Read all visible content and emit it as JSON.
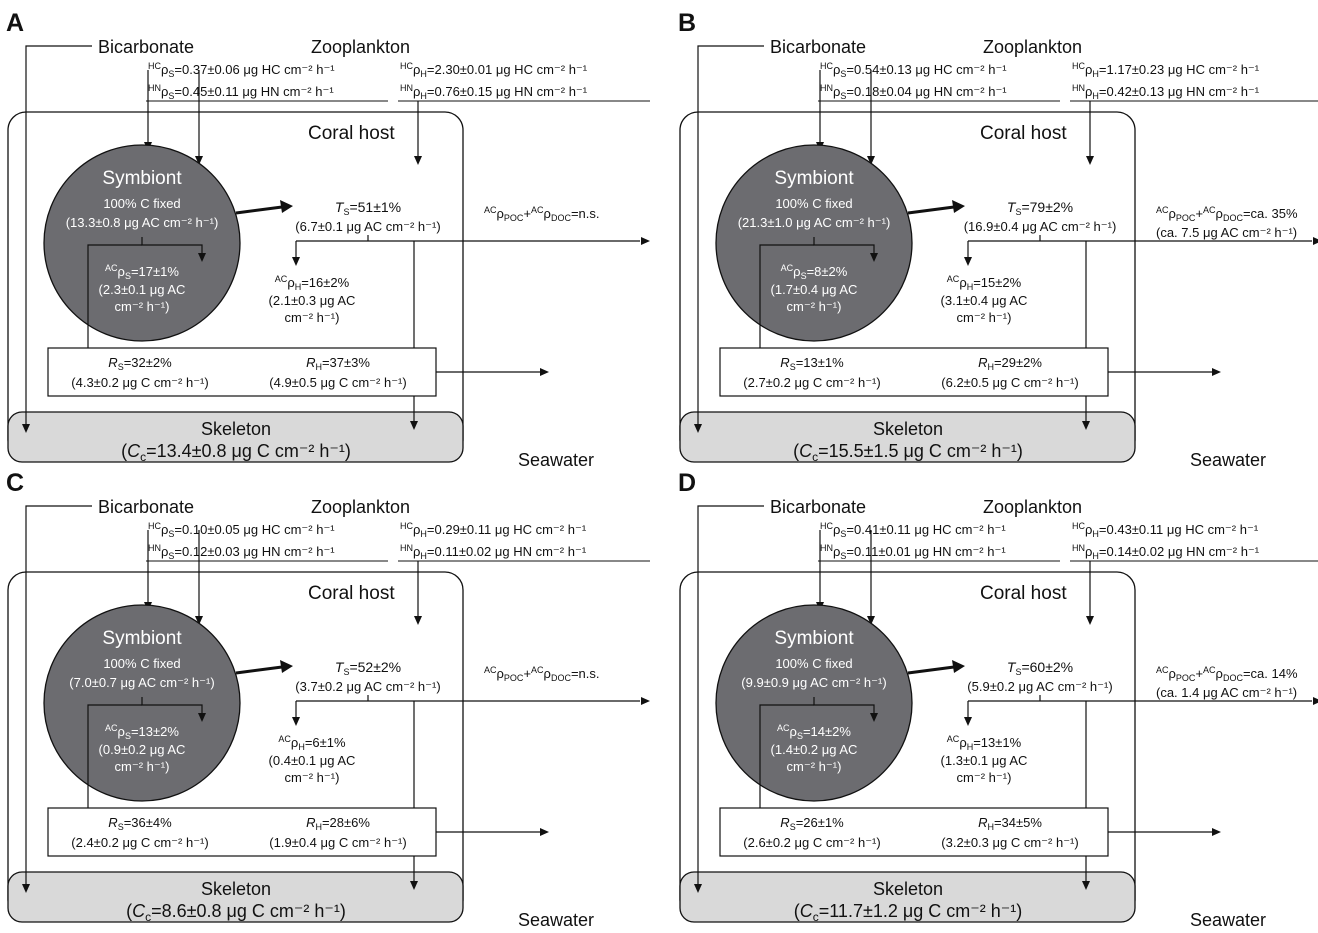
{
  "colors": {
    "symbiont_fill": "#6c6c70",
    "skeleton_fill": "#d9d9d9",
    "line": "#111111"
  },
  "panels": [
    {
      "letter": "A",
      "labels": {
        "bicarbonate": "Bicarbonate",
        "zooplankton": "Zooplankton",
        "coral_host": "Coral host",
        "symbiont": "Symbiont",
        "c_fixed": "100% C fixed",
        "skeleton": "Skeleton",
        "seawater": "Seawater"
      },
      "hc_rho_s": "=0.37±0.06 μg HC cm⁻² h⁻¹",
      "hn_rho_s": "=0.45±0.11 μg HN cm⁻² h⁻¹",
      "hc_rho_h": "=2.30±0.01 μg HC cm⁻² h⁻¹",
      "hn_rho_h": "=0.76±0.15 μg HN cm⁻² h⁻¹",
      "fixed_rate": "(13.3±0.8 μg AC cm⁻² h⁻¹)",
      "ts": "=51±1%",
      "ts_rate": "(6.7±0.1 μg AC cm⁻² h⁻¹)",
      "release": "=n.s.",
      "release_rate": "",
      "rho_s": "=17±1%",
      "rho_s_rate1": "(2.3±0.1 μg AC",
      "rho_s_rate2": "cm⁻² h⁻¹)",
      "rho_h": "=16±2%",
      "rho_h_rate1": "(2.1±0.3 μg AC",
      "rho_h_rate2": "cm⁻² h⁻¹)",
      "rs": "=32±2%",
      "rs_rate": "(4.3±0.2 μg C cm⁻² h⁻¹)",
      "rh": "=37±3%",
      "rh_rate": "(4.9±0.5 μg C cm⁻² h⁻¹)",
      "cc": "=13.4±0.8 μg C cm⁻² h⁻¹)"
    },
    {
      "letter": "B",
      "labels": {
        "bicarbonate": "Bicarbonate",
        "zooplankton": "Zooplankton",
        "coral_host": "Coral host",
        "symbiont": "Symbiont",
        "c_fixed": "100% C fixed",
        "skeleton": "Skeleton",
        "seawater": "Seawater"
      },
      "hc_rho_s": "=0.54±0.13 μg HC cm⁻² h⁻¹",
      "hn_rho_s": "=0.18±0.04 μg HN cm⁻² h⁻¹",
      "hc_rho_h": "=1.17±0.23 μg HC cm⁻² h⁻¹",
      "hn_rho_h": "=0.42±0.13 μg HN cm⁻² h⁻¹",
      "fixed_rate": "(21.3±1.0 μg AC cm⁻² h⁻¹)",
      "ts": "=79±2%",
      "ts_rate": "(16.9±0.4 μg AC cm⁻² h⁻¹)",
      "release": "=ca. 35%",
      "release_rate": "(ca. 7.5 μg AC cm⁻² h⁻¹)",
      "rho_s": "=8±2%",
      "rho_s_rate1": "(1.7±0.4 μg AC",
      "rho_s_rate2": "cm⁻² h⁻¹)",
      "rho_h": "=15±2%",
      "rho_h_rate1": "(3.1±0.4 μg AC",
      "rho_h_rate2": "cm⁻² h⁻¹)",
      "rs": "=13±1%",
      "rs_rate": "(2.7±0.2 μg C cm⁻² h⁻¹)",
      "rh": "=29±2%",
      "rh_rate": "(6.2±0.5 μg C cm⁻² h⁻¹)",
      "cc": "=15.5±1.5 μg C cm⁻² h⁻¹)"
    },
    {
      "letter": "C",
      "labels": {
        "bicarbonate": "Bicarbonate",
        "zooplankton": "Zooplankton",
        "coral_host": "Coral host",
        "symbiont": "Symbiont",
        "c_fixed": "100% C fixed",
        "skeleton": "Skeleton",
        "seawater": "Seawater"
      },
      "hc_rho_s": "=0.10±0.05 μg HC cm⁻² h⁻¹",
      "hn_rho_s": "=0.12±0.03 μg HN cm⁻² h⁻¹",
      "hc_rho_h": "=0.29±0.11 μg HC cm⁻² h⁻¹",
      "hn_rho_h": "=0.11±0.02 μg HN cm⁻² h⁻¹",
      "fixed_rate": "(7.0±0.7 μg AC cm⁻² h⁻¹)",
      "ts": "=52±2%",
      "ts_rate": "(3.7±0.2 μg AC cm⁻² h⁻¹)",
      "release": "=n.s.",
      "release_rate": "",
      "rho_s": "=13±2%",
      "rho_s_rate1": "(0.9±0.2 μg AC",
      "rho_s_rate2": "cm⁻² h⁻¹)",
      "rho_h": "=6±1%",
      "rho_h_rate1": "(0.4±0.1 μg AC",
      "rho_h_rate2": "cm⁻² h⁻¹)",
      "rs": "=36±4%",
      "rs_rate": "(2.4±0.2 μg C cm⁻² h⁻¹)",
      "rh": "=28±6%",
      "rh_rate": "(1.9±0.4 μg C cm⁻² h⁻¹)",
      "cc": "=8.6±0.8 μg C cm⁻² h⁻¹)"
    },
    {
      "letter": "D",
      "labels": {
        "bicarbonate": "Bicarbonate",
        "zooplankton": "Zooplankton",
        "coral_host": "Coral host",
        "symbiont": "Symbiont",
        "c_fixed": "100% C fixed",
        "skeleton": "Skeleton",
        "seawater": "Seawater"
      },
      "hc_rho_s": "=0.41±0.11 μg HC cm⁻² h⁻¹",
      "hn_rho_s": "=0.11±0.01 μg HN cm⁻² h⁻¹",
      "hc_rho_h": "=0.43±0.11 μg HC cm⁻² h⁻¹",
      "hn_rho_h": "=0.14±0.02 μg HN cm⁻² h⁻¹",
      "fixed_rate": "(9.9±0.9 μg AC cm⁻² h⁻¹)",
      "ts": "=60±2%",
      "ts_rate": "(5.9±0.2 μg AC cm⁻² h⁻¹)",
      "release": "=ca. 14%",
      "release_rate": "(ca. 1.4 μg AC cm⁻² h⁻¹)",
      "rho_s": "=14±2%",
      "rho_s_rate1": "(1.4±0.2 μg AC",
      "rho_s_rate2": "cm⁻² h⁻¹)",
      "rho_h": "=13±1%",
      "rho_h_rate1": "(1.3±0.1 μg AC",
      "rho_h_rate2": "cm⁻² h⁻¹)",
      "rs": "=26±1%",
      "rs_rate": "(2.6±0.2 μg C cm⁻² h⁻¹)",
      "rh": "=34±5%",
      "rh_rate": "(3.2±0.3 μg C cm⁻² h⁻¹)",
      "cc": "=11.7±1.2 μg C cm⁻² h⁻¹)"
    }
  ]
}
